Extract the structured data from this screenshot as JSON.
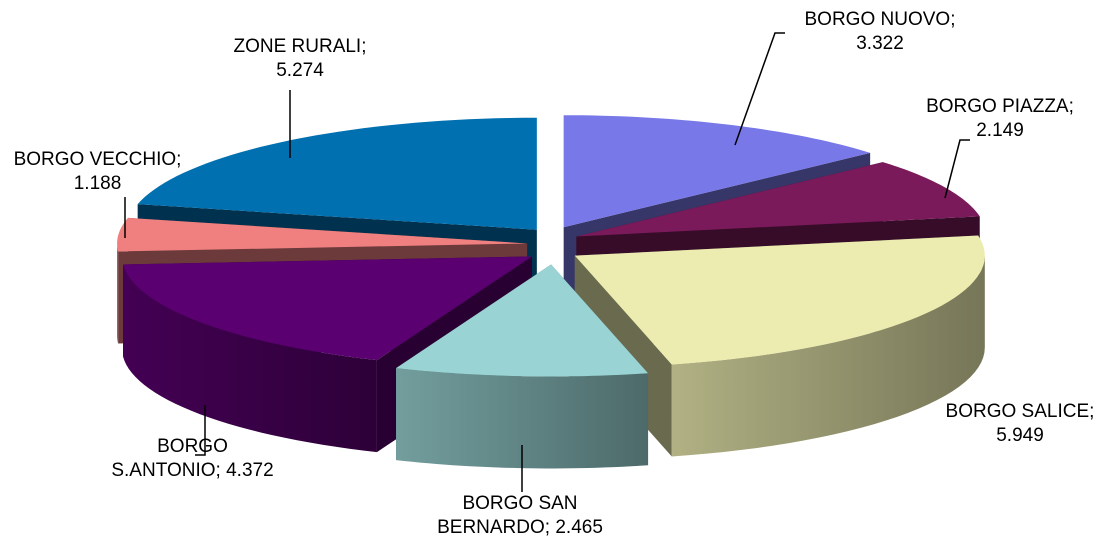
{
  "chart_data": {
    "type": "pie3d",
    "categories": [
      "BORGO NUOVO",
      "BORGO PIAZZA",
      "BORGO SALICE",
      "BORGO SAN BERNARDO",
      "BORGO S.ANTONIO",
      "BORGO VECCHIO",
      "ZONE RURALI"
    ],
    "values": [
      3322,
      2149,
      5949,
      2465,
      4372,
      1188,
      5274
    ],
    "value_labels": [
      "3.322",
      "2.149",
      "5.949",
      "2.465",
      "4.372",
      "1.188",
      "5.274"
    ],
    "label_separator": "; ",
    "colors": [
      "#7878e8",
      "#7a1a5a",
      "#ececb0",
      "#99d3d3",
      "#5a0070",
      "#f08080",
      "#0070b0"
    ]
  }
}
